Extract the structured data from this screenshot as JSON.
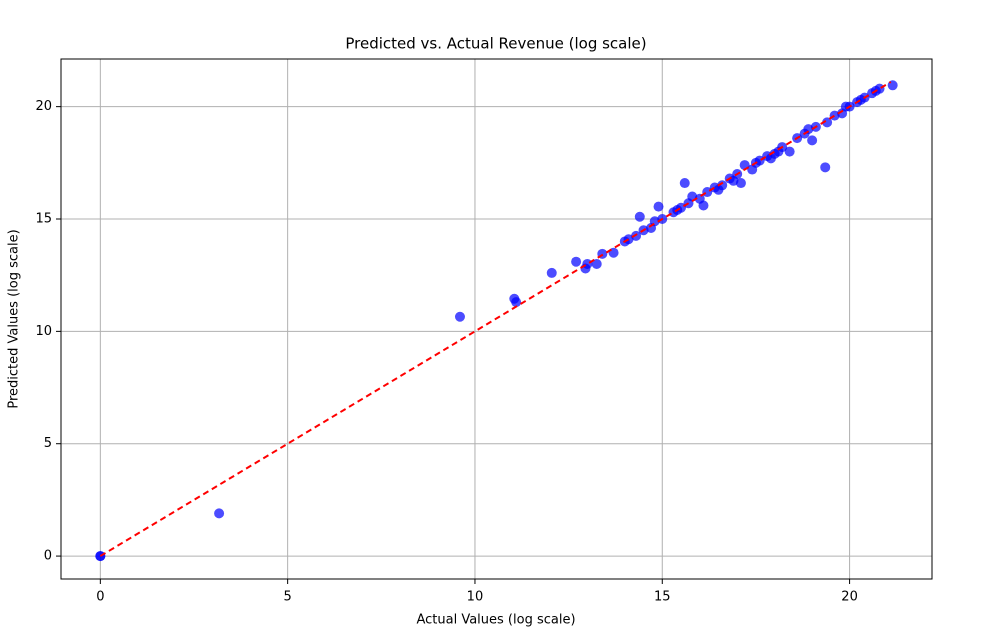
{
  "chart_data": {
    "type": "scatter",
    "title": "Predicted vs. Actual Revenue (log scale)",
    "x_label": "Actual Values (log scale)",
    "y_label": "Predicted Values (log scale)",
    "xlim": [
      -1.05,
      22.2
    ],
    "ylim": [
      -1.02,
      22.12
    ],
    "xticks": [
      0,
      5,
      10,
      15,
      20
    ],
    "yticks": [
      0,
      5,
      10,
      15,
      20
    ],
    "grid": true,
    "series": [
      {
        "color": "#0000ff",
        "x": [
          0,
          0,
          3.17,
          9.6,
          11.05,
          11.1,
          12.05,
          12.7,
          12.95,
          13.0,
          13.25,
          13.4,
          13.7,
          14.0,
          14.1,
          14.3,
          14.4,
          14.5,
          14.7,
          14.8,
          14.9,
          15.0,
          15.3,
          15.5,
          15.6,
          15.7,
          15.8,
          16.0,
          16.1,
          16.2,
          16.4,
          16.6,
          16.8,
          17.0,
          17.1,
          17.2,
          17.4,
          17.6,
          17.8,
          18.0,
          18.2,
          18.4,
          18.6,
          18.8,
          19.0,
          19.1,
          19.35,
          19.4,
          19.6,
          19.8,
          20.0,
          20.2,
          20.4,
          20.6,
          20.8,
          21.15,
          15.4,
          16.5,
          17.5,
          18.1,
          18.9,
          19.9,
          20.3,
          20.7,
          16.9,
          17.9
        ],
        "values": [
          0,
          0,
          1.9,
          10.65,
          11.45,
          11.3,
          12.6,
          13.1,
          12.8,
          13.0,
          13.0,
          13.45,
          13.5,
          14.0,
          14.1,
          14.25,
          15.1,
          14.5,
          14.6,
          14.9,
          15.55,
          15.0,
          15.3,
          15.5,
          16.6,
          15.7,
          16.0,
          15.9,
          15.6,
          16.2,
          16.4,
          16.5,
          16.8,
          17.0,
          16.6,
          17.4,
          17.2,
          17.6,
          17.8,
          17.9,
          18.2,
          18.0,
          18.6,
          18.8,
          18.5,
          19.1,
          17.3,
          19.3,
          19.6,
          19.7,
          20.0,
          20.2,
          20.4,
          20.6,
          20.8,
          20.95,
          15.4,
          16.3,
          17.5,
          18.0,
          19.0,
          20.0,
          20.3,
          20.7,
          16.7,
          17.7
        ]
      }
    ],
    "reference_line": {
      "color": "#ff0000",
      "x": [
        0,
        21.1
      ],
      "y": [
        0,
        21.1
      ]
    }
  }
}
